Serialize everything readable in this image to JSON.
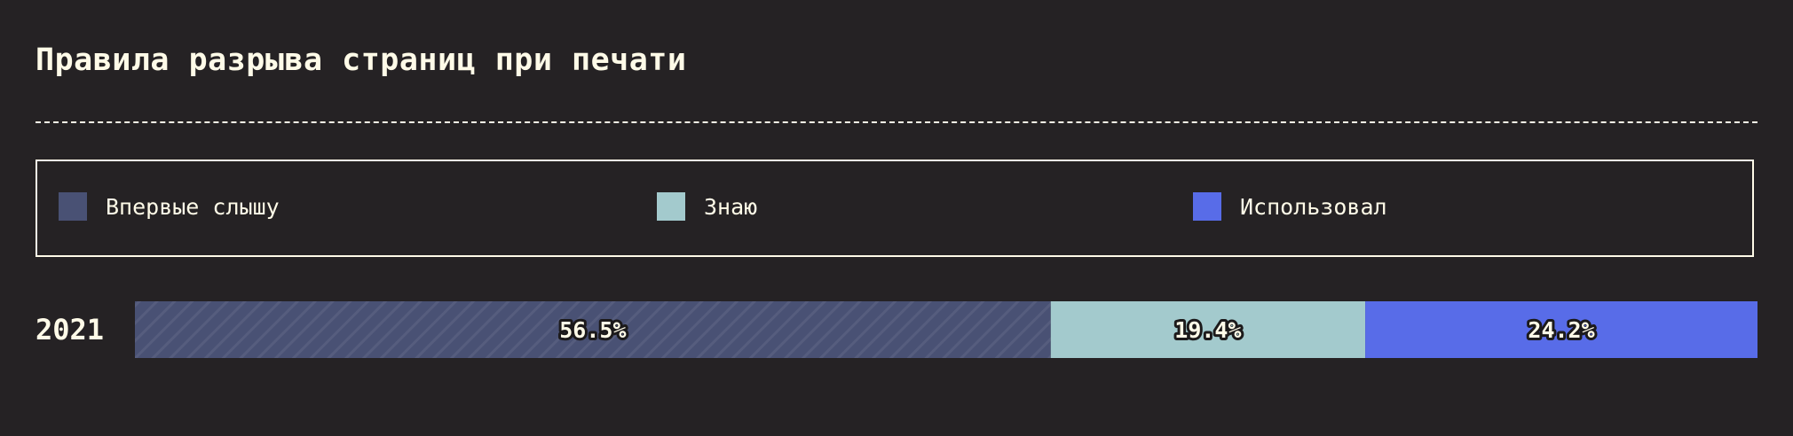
{
  "title": "Правила разрыва страниц при печати",
  "legend": [
    {
      "label": "Впервые слышу",
      "color": "#495174"
    },
    {
      "label": "Знаю",
      "color": "#a3cacd"
    },
    {
      "label": "Использовал",
      "color": "#586ce8"
    }
  ],
  "chart_data": {
    "type": "bar",
    "orientation": "horizontal-stacked-100",
    "title": "Правила разрыва страниц при печати",
    "categories": [
      "2021"
    ],
    "series": [
      {
        "name": "Впервые слышу",
        "values": [
          56.5
        ],
        "label": "56.5%",
        "color": "#495174"
      },
      {
        "name": "Знаю",
        "values": [
          19.4
        ],
        "label": "19.4%",
        "color": "#a3cacd"
      },
      {
        "name": "Использовал",
        "values": [
          24.2
        ],
        "label": "24.2%",
        "color": "#586ce8"
      }
    ],
    "legend_position": "top",
    "grid": false
  }
}
